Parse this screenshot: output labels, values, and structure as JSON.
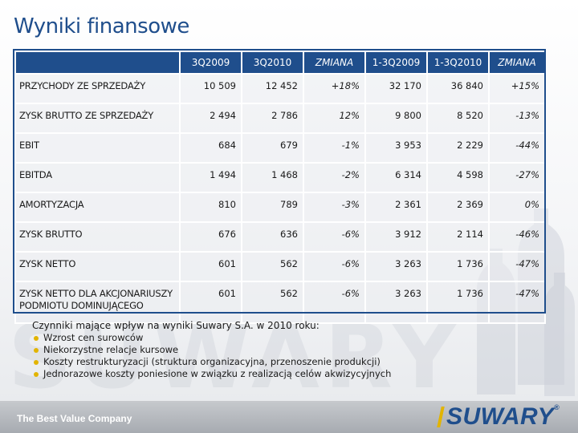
{
  "page": {
    "title": "Wyniki finansowe"
  },
  "table": {
    "columns": [
      "",
      "3Q2009",
      "3Q2010",
      "ZMIANA",
      "1-3Q2009",
      "1-3Q2010",
      "ZMIANA"
    ],
    "rows": [
      {
        "label": "PRZYCHODY ZE SPRZEDAŻY",
        "v1": "10 509",
        "v2": "12 452",
        "chg1": "+18%",
        "v3": "32 170",
        "v4": "36 840",
        "chg2": "+15%"
      },
      {
        "label": "ZYSK BRUTTO ZE SPRZEDAŻY",
        "v1": "2 494",
        "v2": "2 786",
        "chg1": "12%",
        "v3": "9 800",
        "v4": "8 520",
        "chg2": "-13%"
      },
      {
        "label": "EBIT",
        "v1": "684",
        "v2": "679",
        "chg1": "-1%",
        "v3": "3 953",
        "v4": "2 229",
        "chg2": "-44%"
      },
      {
        "label": "EBITDA",
        "v1": "1 494",
        "v2": "1 468",
        "chg1": "-2%",
        "v3": "6 314",
        "v4": "4 598",
        "chg2": "-27%"
      },
      {
        "label": "AMORTYZACJA",
        "v1": "810",
        "v2": "789",
        "chg1": "-3%",
        "v3": "2 361",
        "v4": "2 369",
        "chg2": "0%"
      },
      {
        "label": "ZYSK BRUTTO",
        "v1": "676",
        "v2": "636",
        "chg1": "-6%",
        "v3": "3 912",
        "v4": "2 114",
        "chg2": "-46%"
      },
      {
        "label": "ZYSK NETTO",
        "v1": "601",
        "v2": "562",
        "chg1": "-6%",
        "v3": "3 263",
        "v4": "1 736",
        "chg2": "-47%"
      },
      {
        "label": "ZYSK NETTO DLA AKCJONARIUSZY PODMIOTU DOMINUJĄCEGO",
        "v1": "601",
        "v2": "562",
        "chg1": "-6%",
        "v3": "3 263",
        "v4": "1 736",
        "chg2": "-47%"
      }
    ]
  },
  "factors": {
    "heading": "Czynniki mające wpływ na wyniki Suwary S.A. w 2010 roku:",
    "items": [
      "Wzrost cen surowców",
      "Niekorzystne relacje kursowe",
      "Koszty restrukturyzacji (struktura organizacyjna, przenoszenie produkcji)",
      "Jednorazowe koszty poniesione w związku z realizacją celów akwizycyjnych"
    ]
  },
  "footer": {
    "tagline": "The Best Value Company",
    "brand": "SUWARY",
    "brand_mark": "®",
    "watermark": "SUWARY"
  },
  "colors": {
    "header_bg": "#1f4e8c",
    "title": "#1f4e8c",
    "bullet": "#e2b400",
    "footer_bar": "#b5b9be"
  }
}
